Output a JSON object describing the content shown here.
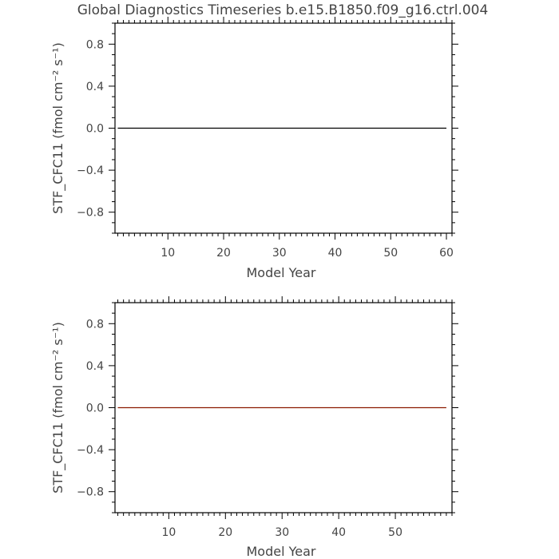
{
  "chart_data": [
    {
      "type": "line",
      "title": "Global Diagnostics Timeseries b.e15.B1850.f09_g16.ctrl.004",
      "xlabel": "Model Year",
      "ylabel": "STF_CFC11 (fmol cm⁻² s⁻¹)",
      "xlim": [
        0.5,
        61
      ],
      "ylim": [
        -1.0,
        1.0
      ],
      "x_ticks": [
        10,
        20,
        30,
        40,
        50,
        60
      ],
      "x_tick_labels": [
        "10",
        "20",
        "30",
        "40",
        "50",
        "60"
      ],
      "y_ticks": [
        -0.8,
        -0.4,
        0.0,
        0.4,
        0.8
      ],
      "y_tick_labels": [
        "−0.8",
        "−0.4",
        "0.0",
        "0.4",
        "0.8"
      ],
      "grid": false,
      "series": [
        {
          "color": "#000000",
          "x": [
            1,
            60
          ],
          "y": [
            0,
            0
          ]
        }
      ]
    },
    {
      "type": "line",
      "title": "",
      "xlabel": "Model Year",
      "ylabel": "STF_CFC11 (fmol cm⁻² s⁻¹)",
      "xlim": [
        0.5,
        60
      ],
      "ylim": [
        -1.0,
        1.0
      ],
      "x_ticks": [
        10,
        20,
        30,
        40,
        50
      ],
      "x_tick_labels": [
        "10",
        "20",
        "30",
        "40",
        "50"
      ],
      "y_ticks": [
        -0.8,
        -0.4,
        0.0,
        0.4,
        0.8
      ],
      "y_tick_labels": [
        "−0.8",
        "−0.4",
        "0.0",
        "0.4",
        "0.8"
      ],
      "grid": false,
      "series": [
        {
          "color": "#8B1A00",
          "x": [
            1,
            59
          ],
          "y": [
            0,
            0
          ]
        }
      ]
    }
  ]
}
